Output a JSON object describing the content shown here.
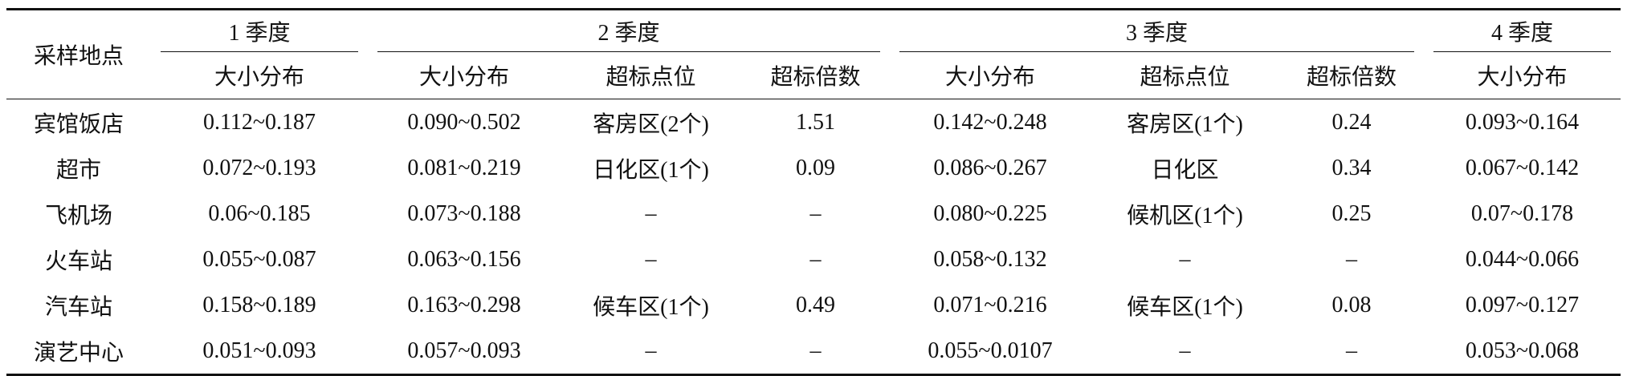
{
  "table": {
    "header": {
      "corner": "采样地点",
      "groups": [
        "1 季度",
        "2 季度",
        "3 季度",
        "4 季度"
      ],
      "subheaders": [
        "大小分布",
        "大小分布",
        "超标点位",
        "超标倍数",
        "大小分布",
        "超标点位",
        "超标倍数",
        "大小分布"
      ]
    },
    "rows": [
      [
        "宾馆饭店",
        "0.112~0.187",
        "0.090~0.502",
        "客房区(2个)",
        "1.51",
        "0.142~0.248",
        "客房区(1个)",
        "0.24",
        "0.093~0.164"
      ],
      [
        "超市",
        "0.072~0.193",
        "0.081~0.219",
        "日化区(1个)",
        "0.09",
        "0.086~0.267",
        "日化区",
        "0.34",
        "0.067~0.142"
      ],
      [
        "飞机场",
        "0.06~0.185",
        "0.073~0.188",
        "–",
        "–",
        "0.080~0.225",
        "候机区(1个)",
        "0.25",
        "0.07~0.178"
      ],
      [
        "火车站",
        "0.055~0.087",
        "0.063~0.156",
        "–",
        "–",
        "0.058~0.132",
        "–",
        "–",
        "0.044~0.066"
      ],
      [
        "汽车站",
        "0.158~0.189",
        "0.163~0.298",
        "候车区(1个)",
        "0.49",
        "0.071~0.216",
        "候车区(1个)",
        "0.08",
        "0.097~0.127"
      ],
      [
        "演艺中心",
        "0.051~0.093",
        "0.057~0.093",
        "–",
        "–",
        "0.055~0.0107",
        "–",
        "–",
        "0.053~0.068"
      ]
    ]
  }
}
